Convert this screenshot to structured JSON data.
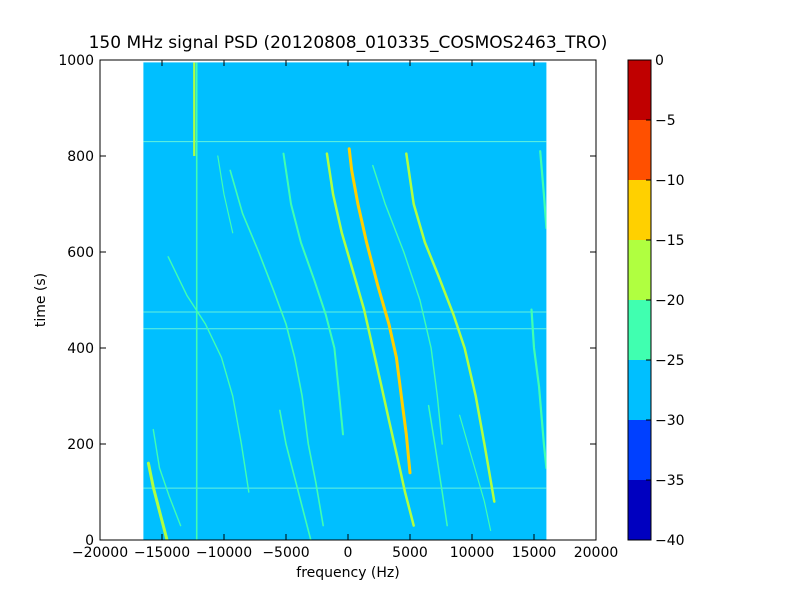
{
  "chart_data": {
    "type": "heatmap",
    "title": "150 MHz signal PSD (20120808_010335_COSMOS2463_TRO)",
    "xlabel": "frequency (Hz)",
    "ylabel": "time (s)",
    "xlim": [
      -20000,
      20000
    ],
    "ylim": [
      0,
      1000
    ],
    "x_ticks": [
      -20000,
      -15000,
      -10000,
      -5000,
      0,
      5000,
      10000,
      15000,
      20000
    ],
    "x_tick_labels": [
      "−20000",
      "−15000",
      "−10000",
      "−5000",
      "0",
      "5000",
      "10000",
      "15000",
      "20000"
    ],
    "y_ticks": [
      0,
      200,
      400,
      600,
      800,
      1000
    ],
    "y_tick_labels": [
      "0",
      "200",
      "400",
      "600",
      "800",
      "1000"
    ],
    "data_extent": {
      "freq_min": -16500,
      "freq_max": 16000,
      "time_min": 0,
      "time_max": 995
    },
    "background_level": -27.5,
    "colorbar": {
      "levels": [
        -40,
        -35,
        -30,
        -25,
        -20,
        -15,
        -10,
        -5,
        0
      ],
      "tick_labels": [
        "−40",
        "−35",
        "−30",
        "−25",
        "−20",
        "−15",
        "−10",
        "−5",
        "0"
      ],
      "colors": [
        "#0000c0",
        "#0040ff",
        "#00bfff",
        "#40ffb0",
        "#b0ff40",
        "#ffd000",
        "#ff5000",
        "#c00000"
      ]
    },
    "traces": [
      {
        "level": -22.5,
        "points": [
          [
            100,
            815
          ],
          [
            300,
            770
          ],
          [
            800,
            700
          ],
          [
            1500,
            620
          ],
          [
            2400,
            530
          ],
          [
            3300,
            450
          ],
          [
            3900,
            380
          ],
          [
            4300,
            300
          ],
          [
            4700,
            220
          ],
          [
            5000,
            140
          ]
        ],
        "color": "#ffd000",
        "width": 3
      },
      {
        "level": -22.5,
        "points": [
          [
            -1700,
            805
          ],
          [
            -1200,
            720
          ],
          [
            -500,
            640
          ],
          [
            400,
            560
          ],
          [
            1300,
            480
          ],
          [
            2000,
            400
          ],
          [
            2700,
            320
          ],
          [
            3300,
            250
          ],
          [
            4000,
            170
          ],
          [
            4600,
            100
          ],
          [
            5300,
            30
          ]
        ],
        "color": "#b0ff40",
        "width": 2.5
      },
      {
        "level": -22.5,
        "points": [
          [
            4700,
            805
          ],
          [
            5300,
            700
          ],
          [
            6200,
            620
          ],
          [
            7300,
            550
          ],
          [
            8500,
            470
          ],
          [
            9400,
            400
          ],
          [
            10300,
            300
          ],
          [
            11000,
            200
          ],
          [
            11800,
            80
          ]
        ],
        "color": "#b0ff40",
        "width": 2.5
      },
      {
        "level": -22.5,
        "points": [
          [
            -5200,
            805
          ],
          [
            -4600,
            700
          ],
          [
            -3800,
            620
          ],
          [
            -2700,
            540
          ],
          [
            -1800,
            470
          ],
          [
            -1100,
            400
          ],
          [
            -700,
            300
          ],
          [
            -400,
            220
          ]
        ],
        "color": "#40ffb0",
        "width": 2
      },
      {
        "level": -22.5,
        "points": [
          [
            -9500,
            770
          ],
          [
            -8500,
            680
          ],
          [
            -7200,
            600
          ],
          [
            -6000,
            520
          ],
          [
            -5000,
            450
          ],
          [
            -4300,
            380
          ],
          [
            -3700,
            300
          ],
          [
            -3200,
            200
          ],
          [
            -2600,
            120
          ],
          [
            -2000,
            30
          ]
        ],
        "color": "#40ffb0",
        "width": 1.6
      },
      {
        "level": -22.5,
        "points": [
          [
            -5500,
            270
          ],
          [
            -5000,
            200
          ],
          [
            -4200,
            120
          ],
          [
            -3400,
            40
          ],
          [
            -3000,
            0
          ]
        ],
        "color": "#40ffb0",
        "width": 1.6
      },
      {
        "level": -22.5,
        "points": [
          [
            2000,
            780
          ],
          [
            3000,
            700
          ],
          [
            4500,
            600
          ],
          [
            5800,
            500
          ],
          [
            6700,
            400
          ],
          [
            7200,
            300
          ],
          [
            7600,
            200
          ]
        ],
        "color": "#40ffb0",
        "width": 1.4
      },
      {
        "level": -22.5,
        "points": [
          [
            6500,
            280
          ],
          [
            7000,
            200
          ],
          [
            7600,
            100
          ],
          [
            8000,
            30
          ]
        ],
        "color": "#40ffb0",
        "width": 1.5
      },
      {
        "level": -22.5,
        "points": [
          [
            -14500,
            590
          ],
          [
            -13000,
            510
          ],
          [
            -11500,
            450
          ],
          [
            -10200,
            380
          ],
          [
            -9300,
            300
          ],
          [
            -8600,
            200
          ],
          [
            -8000,
            100
          ]
        ],
        "color": "#40ffb0",
        "width": 1.4
      },
      {
        "level": -22.5,
        "points": [
          [
            -15700,
            230
          ],
          [
            -15200,
            150
          ],
          [
            -14400,
            90
          ],
          [
            -13500,
            30
          ]
        ],
        "color": "#40ffb0",
        "width": 1.4
      },
      {
        "level": -22.5,
        "points": [
          [
            -16100,
            160
          ],
          [
            -15700,
            110
          ],
          [
            -15200,
            60
          ],
          [
            -14800,
            20
          ],
          [
            -14600,
            0
          ]
        ],
        "color": "#b0ff40",
        "width": 3
      },
      {
        "level": -22.5,
        "points": [
          [
            15500,
            810
          ],
          [
            15800,
            720
          ],
          [
            16000,
            650
          ]
        ],
        "color": "#40ffb0",
        "width": 2.2
      },
      {
        "level": -22.5,
        "points": [
          [
            14800,
            480
          ],
          [
            15000,
            400
          ],
          [
            15400,
            320
          ],
          [
            15800,
            200
          ],
          [
            16000,
            150
          ]
        ],
        "color": "#40ffb0",
        "width": 2.2
      },
      {
        "level": -22.5,
        "points": [
          [
            9000,
            260
          ],
          [
            10000,
            170
          ],
          [
            11000,
            80
          ],
          [
            11500,
            20
          ]
        ],
        "color": "#40ffb0",
        "width": 1.2
      },
      {
        "level": -22.5,
        "points": [
          [
            -10500,
            800
          ],
          [
            -10000,
            720
          ],
          [
            -9300,
            640
          ]
        ],
        "color": "#40ffb0",
        "width": 1.2
      }
    ],
    "vertical_lines": [
      {
        "level": -22.5,
        "freq": -12200,
        "from": 0,
        "to": 995,
        "color": "#40ffb0",
        "width": 1.6
      },
      {
        "level": -22.5,
        "freq": -12400,
        "from": 800,
        "to": 995,
        "color": "#b0ff40",
        "width": 2.2
      }
    ],
    "horizontal_lines": [
      {
        "level": -22.5,
        "time": 830,
        "color": "#7fffd4",
        "width": 1
      },
      {
        "level": -22.5,
        "time": 475,
        "color": "#7fffd4",
        "width": 1
      },
      {
        "level": -22.5,
        "time": 440,
        "color": "#7fffd4",
        "width": 1
      },
      {
        "level": -22.5,
        "time": 108,
        "color": "#7fffd4",
        "width": 1
      }
    ]
  }
}
